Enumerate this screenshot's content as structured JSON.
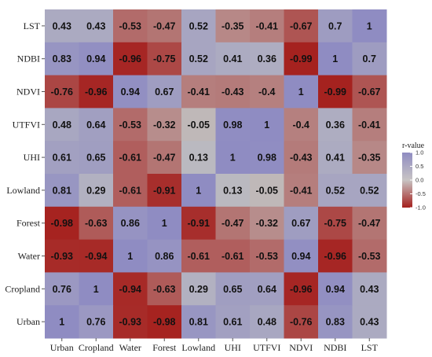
{
  "chart_data": {
    "type": "heatmap",
    "x_categories": [
      "Urban",
      "Cropland",
      "Water",
      "Forest",
      "Lowland",
      "UHI",
      "UTFVI",
      "NDVI",
      "NDBI",
      "LST"
    ],
    "y_categories": [
      "LST",
      "NDBI",
      "NDVI",
      "UTFVI",
      "UHI",
      "Lowland",
      "Forest",
      "Water",
      "Cropland",
      "Urban"
    ],
    "values": [
      [
        0.43,
        0.43,
        -0.53,
        -0.47,
        0.52,
        -0.35,
        -0.41,
        -0.67,
        0.7,
        1
      ],
      [
        0.83,
        0.94,
        -0.96,
        -0.75,
        0.52,
        0.41,
        0.36,
        -0.99,
        1,
        0.7
      ],
      [
        -0.76,
        -0.96,
        0.94,
        0.67,
        -0.41,
        -0.43,
        -0.4,
        1,
        -0.99,
        -0.67
      ],
      [
        0.48,
        0.64,
        -0.53,
        -0.32,
        -0.05,
        0.98,
        1,
        -0.4,
        0.36,
        -0.41
      ],
      [
        0.61,
        0.65,
        -0.61,
        -0.47,
        0.13,
        1,
        0.98,
        -0.43,
        0.41,
        -0.35
      ],
      [
        0.81,
        0.29,
        -0.61,
        -0.91,
        1,
        0.13,
        -0.05,
        -0.41,
        0.52,
        0.52
      ],
      [
        -0.98,
        -0.63,
        0.86,
        1,
        -0.91,
        -0.47,
        -0.32,
        0.67,
        -0.75,
        -0.47
      ],
      [
        -0.93,
        -0.94,
        1,
        0.86,
        -0.61,
        -0.61,
        -0.53,
        0.94,
        -0.96,
        -0.53
      ],
      [
        0.76,
        1,
        -0.94,
        -0.63,
        0.29,
        0.65,
        0.64,
        -0.96,
        0.94,
        0.43
      ],
      [
        1,
        0.76,
        -0.93,
        -0.98,
        0.81,
        0.61,
        0.48,
        -0.76,
        0.83,
        0.43
      ]
    ],
    "legend": {
      "title": "r-value",
      "ticks": [
        "1.0",
        "0.5",
        "0.0",
        "-0.5",
        "-1.0"
      ],
      "tick_values": [
        1.0,
        0.5,
        0.0,
        -0.5,
        -1.0
      ],
      "range": [
        -1.0,
        1.0
      ]
    },
    "colors": {
      "high": "#8f8cc2",
      "mid": "#c0c0c0",
      "low": "#a5201d"
    },
    "grid": false,
    "legend_placement": "right"
  }
}
